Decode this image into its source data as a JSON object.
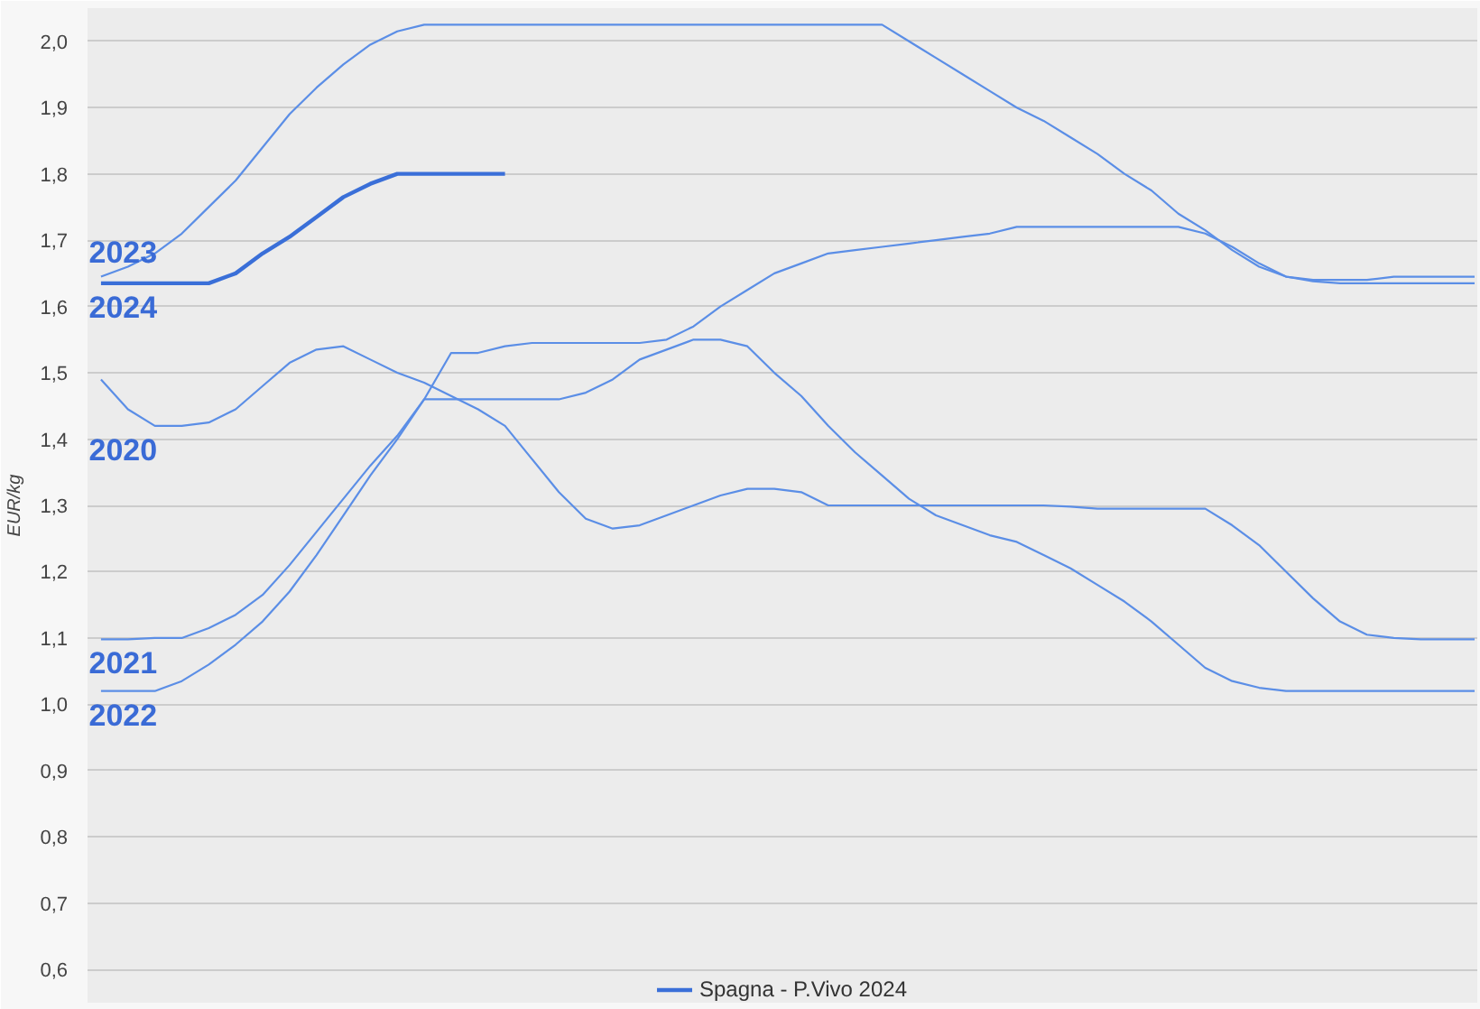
{
  "chart_data": {
    "type": "line",
    "ylabel": "EUR/kg",
    "categories": [
      null,
      null,
      null,
      null,
      null,
      null,
      null,
      null,
      null,
      null,
      null,
      null,
      null,
      null,
      null,
      null,
      null,
      null,
      null,
      null,
      null,
      null,
      null,
      null,
      null,
      null,
      null,
      null,
      null,
      null,
      null,
      null,
      null,
      null,
      null,
      null,
      null,
      null,
      null,
      null,
      null,
      null,
      null,
      null,
      null,
      null,
      null,
      null,
      null,
      null,
      null,
      null
    ],
    "series": [
      {
        "name": "2020",
        "color": "#5b8ee6",
        "values": [
          1.49,
          1.445,
          1.42,
          1.42,
          1.425,
          1.445,
          1.48,
          1.515,
          1.535,
          1.54,
          1.52,
          1.5,
          1.485,
          1.465,
          1.445,
          1.42,
          1.37,
          1.32,
          1.28,
          1.265,
          1.27,
          1.285,
          1.3,
          1.315,
          1.325,
          1.325,
          1.32,
          1.3,
          1.3,
          1.3,
          1.3,
          1.3,
          1.3,
          1.3,
          1.3,
          1.3,
          1.298,
          1.295,
          1.295,
          1.295,
          1.295,
          1.295,
          1.27,
          1.24,
          1.2,
          1.16,
          1.125,
          1.105,
          1.1,
          1.098,
          1.098,
          1.098
        ]
      },
      {
        "name": "2021",
        "color": "#5b8ee6",
        "values": [
          1.098,
          1.098,
          1.1,
          1.1,
          1.115,
          1.135,
          1.165,
          1.21,
          1.26,
          1.31,
          1.36,
          1.405,
          1.46,
          1.46,
          1.46,
          1.46,
          1.46,
          1.46,
          1.47,
          1.49,
          1.52,
          1.535,
          1.55,
          1.55,
          1.54,
          1.5,
          1.465,
          1.42,
          1.38,
          1.345,
          1.31,
          1.285,
          1.27,
          1.255,
          1.245,
          1.225,
          1.205,
          1.18,
          1.155,
          1.125,
          1.09,
          1.055,
          1.035,
          1.025,
          1.02,
          1.02,
          1.02,
          1.02,
          1.02,
          1.02,
          1.02,
          1.02
        ]
      },
      {
        "name": "2022",
        "color": "#5b8ee6",
        "values": [
          1.02,
          1.02,
          1.02,
          1.035,
          1.06,
          1.09,
          1.125,
          1.17,
          1.225,
          1.285,
          1.345,
          1.4,
          1.46,
          1.53,
          1.53,
          1.54,
          1.545,
          1.545,
          1.545,
          1.545,
          1.545,
          1.55,
          1.57,
          1.6,
          1.625,
          1.65,
          1.665,
          1.68,
          1.685,
          1.69,
          1.695,
          1.7,
          1.705,
          1.71,
          1.72,
          1.72,
          1.72,
          1.72,
          1.72,
          1.72,
          1.72,
          1.71,
          1.69,
          1.665,
          1.645,
          1.64,
          1.64,
          1.64,
          1.645,
          1.645,
          1.645,
          1.645
        ]
      },
      {
        "name": "2023",
        "color": "#5b8ee6",
        "values": [
          1.645,
          1.66,
          1.68,
          1.71,
          1.75,
          1.79,
          1.84,
          1.89,
          1.93,
          1.965,
          1.995,
          2.015,
          2.025,
          2.025,
          2.025,
          2.025,
          2.025,
          2.025,
          2.025,
          2.025,
          2.025,
          2.025,
          2.025,
          2.025,
          2.025,
          2.025,
          2.025,
          2.025,
          2.025,
          2.025,
          2.0,
          1.975,
          1.95,
          1.925,
          1.9,
          1.88,
          1.855,
          1.83,
          1.8,
          1.775,
          1.74,
          1.715,
          1.685,
          1.66,
          1.645,
          1.638,
          1.635,
          1.635,
          1.635,
          1.635,
          1.635,
          1.635
        ]
      },
      {
        "name": "Spagna - P.Vivo 2024",
        "color": "#3a6fd8",
        "values": [
          1.635,
          1.635,
          1.635,
          1.635,
          1.635,
          1.65,
          1.68,
          1.705,
          1.735,
          1.765,
          1.785,
          1.8,
          1.8,
          1.8,
          1.8,
          1.8,
          null,
          null,
          null,
          null,
          null,
          null,
          null,
          null,
          null,
          null,
          null,
          null,
          null,
          null,
          null,
          null,
          null,
          null,
          null,
          null,
          null,
          null,
          null,
          null,
          null,
          null,
          null,
          null,
          null,
          null,
          null,
          null,
          null,
          null,
          null,
          null
        ]
      }
    ],
    "annotations": [
      "2024"
    ],
    "ylim": [
      0.55,
      2.05
    ],
    "yticks": [
      {
        "value": 0.6,
        "label": "0,6"
      },
      {
        "value": 0.7,
        "label": "0,7"
      },
      {
        "value": 0.8,
        "label": "0,8"
      },
      {
        "value": 0.9,
        "label": "0,9"
      },
      {
        "value": 1.0,
        "label": "1,0"
      },
      {
        "value": 1.1,
        "label": "1,1"
      },
      {
        "value": 1.2,
        "label": "1,2"
      },
      {
        "value": 1.3,
        "label": "1,3"
      },
      {
        "value": 1.4,
        "label": "1,4"
      },
      {
        "value": 1.5,
        "label": "1,5"
      },
      {
        "value": 1.6,
        "label": "1,6"
      },
      {
        "value": 1.7,
        "label": "1,7"
      },
      {
        "value": 1.8,
        "label": "1,8"
      },
      {
        "value": 1.9,
        "label": "1,9"
      },
      {
        "value": 2.0,
        "label": "2,0"
      }
    ],
    "tick_labels": "y",
    "grid": "y",
    "legend": "bottom",
    "marker": "none",
    "line_style": "solid"
  }
}
